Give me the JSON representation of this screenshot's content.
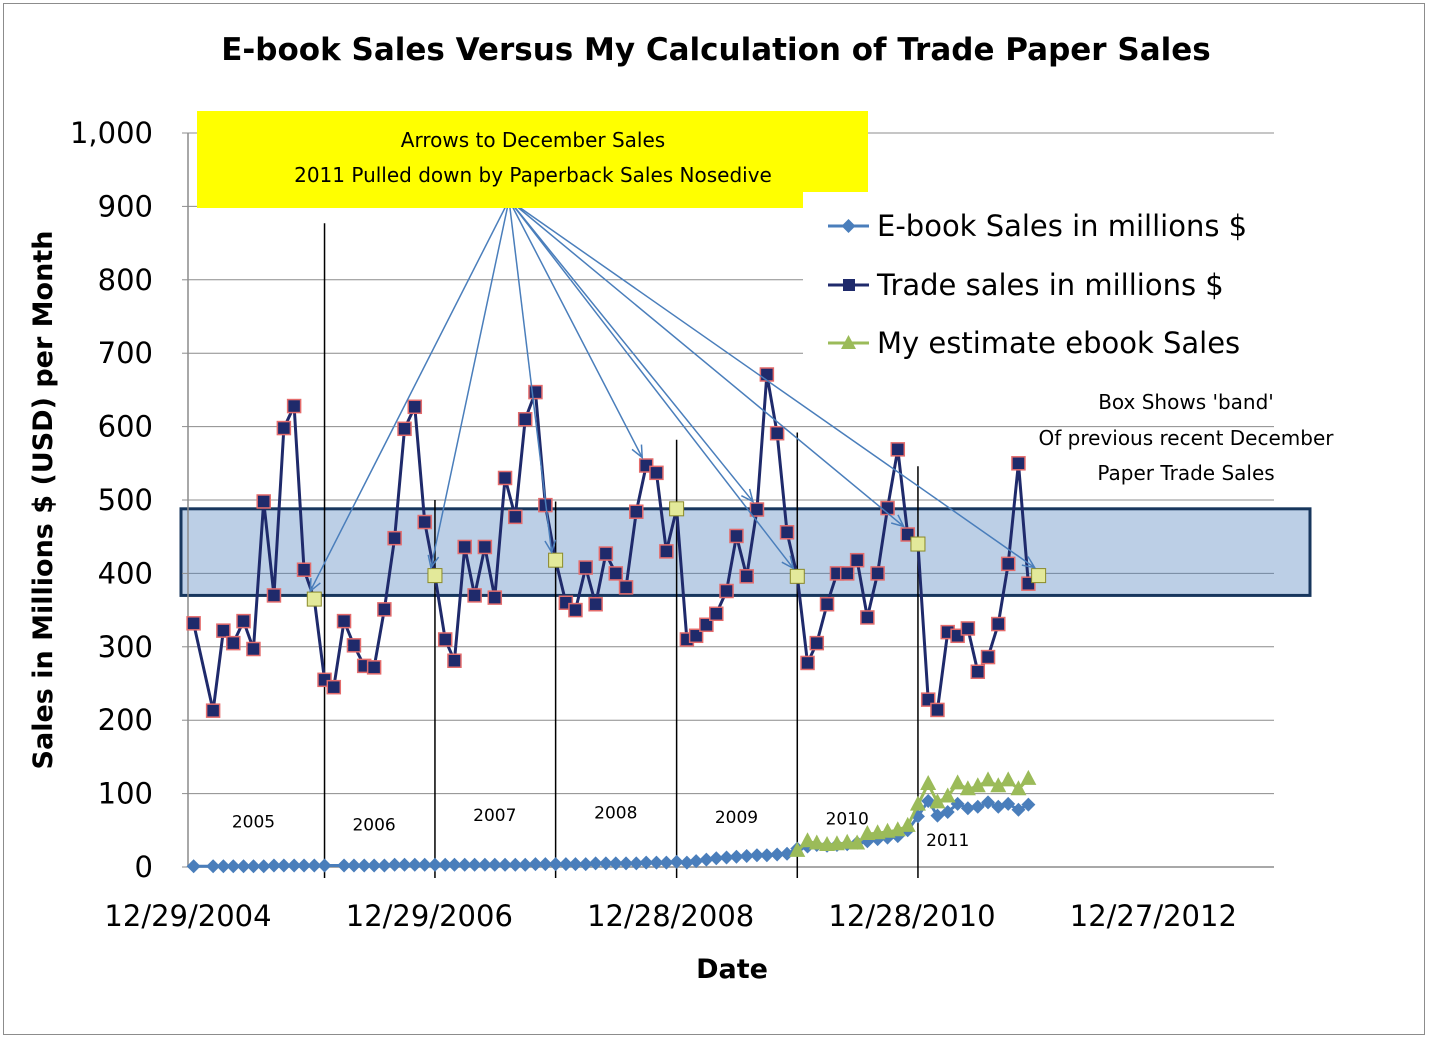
{
  "chart_data": {
    "type": "line",
    "title": "E-book Sales Versus My Calculation of Trade Paper Sales",
    "xlabel": "Date",
    "ylabel": "Sales in Millions $ (USD) per Month",
    "ylim": [
      0,
      1000
    ],
    "y_ticks": [
      "0",
      "100",
      "200",
      "300",
      "400",
      "500",
      "600",
      "700",
      "800",
      "900",
      "1,000"
    ],
    "y_tick_values": [
      0,
      100,
      200,
      300,
      400,
      500,
      600,
      700,
      800,
      900,
      1000
    ],
    "xlim": [
      "2004-12-29",
      "2013-12-27"
    ],
    "x_ticks": [
      "12/29/2004",
      "12/29/2006",
      "12/28/2008",
      "12/28/2010",
      "12/27/2012"
    ],
    "x_tick_dates": [
      "2004-12-29",
      "2006-12-29",
      "2008-12-28",
      "2010-12-28",
      "2012-12-27"
    ],
    "grid": true,
    "legend_position": "right",
    "series": [
      {
        "name": "E-book Sales in millions $",
        "color": "#4a7ebb",
        "marker": "diamond",
        "points": [
          [
            "2005-01",
            1
          ],
          [
            "2005-03",
            1
          ],
          [
            "2005-04",
            1
          ],
          [
            "2005-05",
            1
          ],
          [
            "2005-06",
            1
          ],
          [
            "2005-07",
            1
          ],
          [
            "2005-08",
            1
          ],
          [
            "2005-09",
            2
          ],
          [
            "2005-10",
            2
          ],
          [
            "2005-11",
            2
          ],
          [
            "2005-12",
            2
          ],
          [
            "2006-01",
            2
          ],
          [
            "2006-02",
            2
          ],
          [
            "2006-04",
            2
          ],
          [
            "2006-05",
            2
          ],
          [
            "2006-06",
            2
          ],
          [
            "2006-07",
            2
          ],
          [
            "2006-08",
            2
          ],
          [
            "2006-09",
            3
          ],
          [
            "2006-10",
            3
          ],
          [
            "2006-11",
            3
          ],
          [
            "2006-12",
            3
          ],
          [
            "2007-01",
            3
          ],
          [
            "2007-02",
            3
          ],
          [
            "2007-03",
            3
          ],
          [
            "2007-04",
            3
          ],
          [
            "2007-05",
            3
          ],
          [
            "2007-06",
            3
          ],
          [
            "2007-07",
            3
          ],
          [
            "2007-08",
            3
          ],
          [
            "2007-09",
            3
          ],
          [
            "2007-10",
            3
          ],
          [
            "2007-11",
            4
          ],
          [
            "2007-12",
            4
          ],
          [
            "2008-01",
            4
          ],
          [
            "2008-02",
            4
          ],
          [
            "2008-03",
            4
          ],
          [
            "2008-04",
            4
          ],
          [
            "2008-05",
            5
          ],
          [
            "2008-06",
            5
          ],
          [
            "2008-07",
            5
          ],
          [
            "2008-08",
            5
          ],
          [
            "2008-09",
            5
          ],
          [
            "2008-10",
            6
          ],
          [
            "2008-11",
            6
          ],
          [
            "2008-12",
            6
          ],
          [
            "2009-01",
            7
          ],
          [
            "2009-02",
            6
          ],
          [
            "2009-03",
            8
          ],
          [
            "2009-04",
            10
          ],
          [
            "2009-05",
            12
          ],
          [
            "2009-06",
            13
          ],
          [
            "2009-07",
            14
          ],
          [
            "2009-08",
            15
          ],
          [
            "2009-09",
            16
          ],
          [
            "2009-10",
            16
          ],
          [
            "2009-11",
            17
          ],
          [
            "2009-12",
            18
          ],
          [
            "2010-01",
            25
          ],
          [
            "2010-02",
            28
          ],
          [
            "2010-03",
            30
          ],
          [
            "2010-04",
            29
          ],
          [
            "2010-05",
            30
          ],
          [
            "2010-06",
            31
          ],
          [
            "2010-07",
            33
          ],
          [
            "2010-08",
            35
          ],
          [
            "2010-09",
            38
          ],
          [
            "2010-10",
            40
          ],
          [
            "2010-11",
            42
          ],
          [
            "2010-12",
            50
          ],
          [
            "2011-01",
            69
          ],
          [
            "2011-02",
            90
          ],
          [
            "2011-03",
            70
          ],
          [
            "2011-04",
            75
          ],
          [
            "2011-05",
            86
          ],
          [
            "2011-06",
            80
          ],
          [
            "2011-07",
            82
          ],
          [
            "2011-08",
            88
          ],
          [
            "2011-09",
            82
          ],
          [
            "2011-10",
            86
          ],
          [
            "2011-11",
            78
          ],
          [
            "2011-12",
            85
          ]
        ]
      },
      {
        "name": "Trade sales in millions $",
        "color": "#1f2a6b",
        "marker": "square",
        "points": [
          [
            "2005-01",
            332
          ],
          [
            "2005-03",
            213
          ],
          [
            "2005-04",
            322
          ],
          [
            "2005-05",
            305
          ],
          [
            "2005-06",
            335
          ],
          [
            "2005-07",
            297
          ],
          [
            "2005-08",
            498
          ],
          [
            "2005-09",
            370
          ],
          [
            "2005-10",
            598
          ],
          [
            "2005-11",
            628
          ],
          [
            "2005-12",
            405
          ],
          [
            "2006-01",
            365
          ],
          [
            "2006-02",
            255
          ],
          [
            "2006-03",
            245
          ],
          [
            "2006-04",
            335
          ],
          [
            "2006-05",
            302
          ],
          [
            "2006-06",
            274
          ],
          [
            "2006-07",
            272
          ],
          [
            "2006-08",
            351
          ],
          [
            "2006-09",
            448
          ],
          [
            "2006-10",
            597
          ],
          [
            "2006-11",
            627
          ],
          [
            "2006-12",
            470
          ],
          [
            "2007-01",
            397
          ],
          [
            "2007-02",
            310
          ],
          [
            "2007-03",
            281
          ],
          [
            "2007-04",
            436
          ],
          [
            "2007-05",
            370
          ],
          [
            "2007-06",
            436
          ],
          [
            "2007-07",
            367
          ],
          [
            "2007-08",
            530
          ],
          [
            "2007-09",
            477
          ],
          [
            "2007-10",
            610
          ],
          [
            "2007-11",
            647
          ],
          [
            "2007-12",
            493
          ],
          [
            "2008-01",
            418
          ],
          [
            "2008-02",
            360
          ],
          [
            "2008-03",
            350
          ],
          [
            "2008-04",
            408
          ],
          [
            "2008-05",
            358
          ],
          [
            "2008-06",
            427
          ],
          [
            "2008-07",
            400
          ],
          [
            "2008-08",
            381
          ],
          [
            "2008-09",
            484
          ],
          [
            "2008-10",
            547
          ],
          [
            "2008-11",
            537
          ],
          [
            "2008-12",
            430
          ],
          [
            "2009-01",
            488
          ],
          [
            "2009-02",
            310
          ],
          [
            "2009-03",
            315
          ],
          [
            "2009-04",
            330
          ],
          [
            "2009-05",
            345
          ],
          [
            "2009-06",
            376
          ],
          [
            "2009-07",
            451
          ],
          [
            "2009-08",
            396
          ],
          [
            "2009-09",
            487
          ],
          [
            "2009-10",
            671
          ],
          [
            "2009-11",
            591
          ],
          [
            "2009-12",
            456
          ],
          [
            "2010-01",
            396
          ],
          [
            "2010-02",
            278
          ],
          [
            "2010-03",
            305
          ],
          [
            "2010-04",
            358
          ],
          [
            "2010-05",
            400
          ],
          [
            "2010-06",
            400
          ],
          [
            "2010-07",
            418
          ],
          [
            "2010-08",
            340
          ],
          [
            "2010-09",
            400
          ],
          [
            "2010-10",
            489
          ],
          [
            "2010-11",
            569
          ],
          [
            "2010-12",
            453
          ],
          [
            "2011-01",
            440
          ],
          [
            "2011-02",
            228
          ],
          [
            "2011-03",
            214
          ],
          [
            "2011-04",
            320
          ],
          [
            "2011-05",
            315
          ],
          [
            "2011-06",
            325
          ],
          [
            "2011-07",
            266
          ],
          [
            "2011-08",
            286
          ],
          [
            "2011-09",
            331
          ],
          [
            "2011-10",
            413
          ],
          [
            "2011-11",
            550
          ],
          [
            "2011-12",
            386
          ]
        ],
        "december_highlight": [
          [
            "2006-01",
            365
          ],
          [
            "2007-01",
            397
          ],
          [
            "2008-01",
            418
          ],
          [
            "2009-01",
            488
          ],
          [
            "2010-01",
            396
          ],
          [
            "2011-01",
            440
          ],
          [
            "2012-01",
            397
          ]
        ]
      },
      {
        "name": "My estimate ebook Sales",
        "color": "#9bbb59",
        "marker": "triangle",
        "points": [
          [
            "2010-01",
            22
          ],
          [
            "2010-02",
            35
          ],
          [
            "2010-03",
            32
          ],
          [
            "2010-04",
            30
          ],
          [
            "2010-05",
            31
          ],
          [
            "2010-06",
            33
          ],
          [
            "2010-07",
            32
          ],
          [
            "2010-08",
            45
          ],
          [
            "2010-09",
            46
          ],
          [
            "2010-10",
            48
          ],
          [
            "2010-11",
            50
          ],
          [
            "2010-12",
            56
          ],
          [
            "2011-01",
            85
          ],
          [
            "2011-02",
            113
          ],
          [
            "2011-03",
            88
          ],
          [
            "2011-04",
            96
          ],
          [
            "2011-05",
            114
          ],
          [
            "2011-06",
            106
          ],
          [
            "2011-07",
            110
          ],
          [
            "2011-08",
            118
          ],
          [
            "2011-09",
            110
          ],
          [
            "2011-10",
            118
          ],
          [
            "2011-11",
            106
          ],
          [
            "2011-12",
            120
          ]
        ]
      }
    ],
    "band": {
      "low": 370,
      "high": 488,
      "x_start": "2004-12-29",
      "x_end": "2013-12-27"
    },
    "annotations": {
      "callout_line1": "Arrows to December Sales",
      "callout_line2": "2011 Pulled down by Paperback Sales Nosedive",
      "band_note_line1": "Box Shows 'band'",
      "band_note_line2": "Of previous recent  December",
      "band_note_line3": "Paper Trade Sales"
    },
    "arrow_targets": [
      [
        "2006-01",
        365
      ],
      [
        "2007-01",
        397
      ],
      [
        "2008-01",
        418
      ],
      [
        "2008-10",
        547
      ],
      [
        "2009-09",
        487
      ],
      [
        "2010-01",
        396
      ],
      [
        "2010-12",
        453
      ],
      [
        "2012-01",
        397
      ]
    ],
    "year_dividers": [
      [
        "2006-02",
        877
      ],
      [
        "2007-01",
        500
      ],
      [
        "2008-01",
        498
      ],
      [
        "2009-01",
        582
      ],
      [
        "2010-01",
        592
      ],
      [
        "2011-01",
        546
      ]
    ],
    "year_labels": [
      [
        "2005",
        "2005-07",
        62
      ],
      [
        "2006",
        "2006-07",
        58
      ],
      [
        "2007",
        "2007-07",
        71
      ],
      [
        "2008",
        "2008-07",
        74
      ],
      [
        "2009",
        "2009-07",
        68
      ],
      [
        "2010",
        "2010-06",
        66
      ],
      [
        "2011",
        "2011-04",
        37
      ]
    ]
  }
}
